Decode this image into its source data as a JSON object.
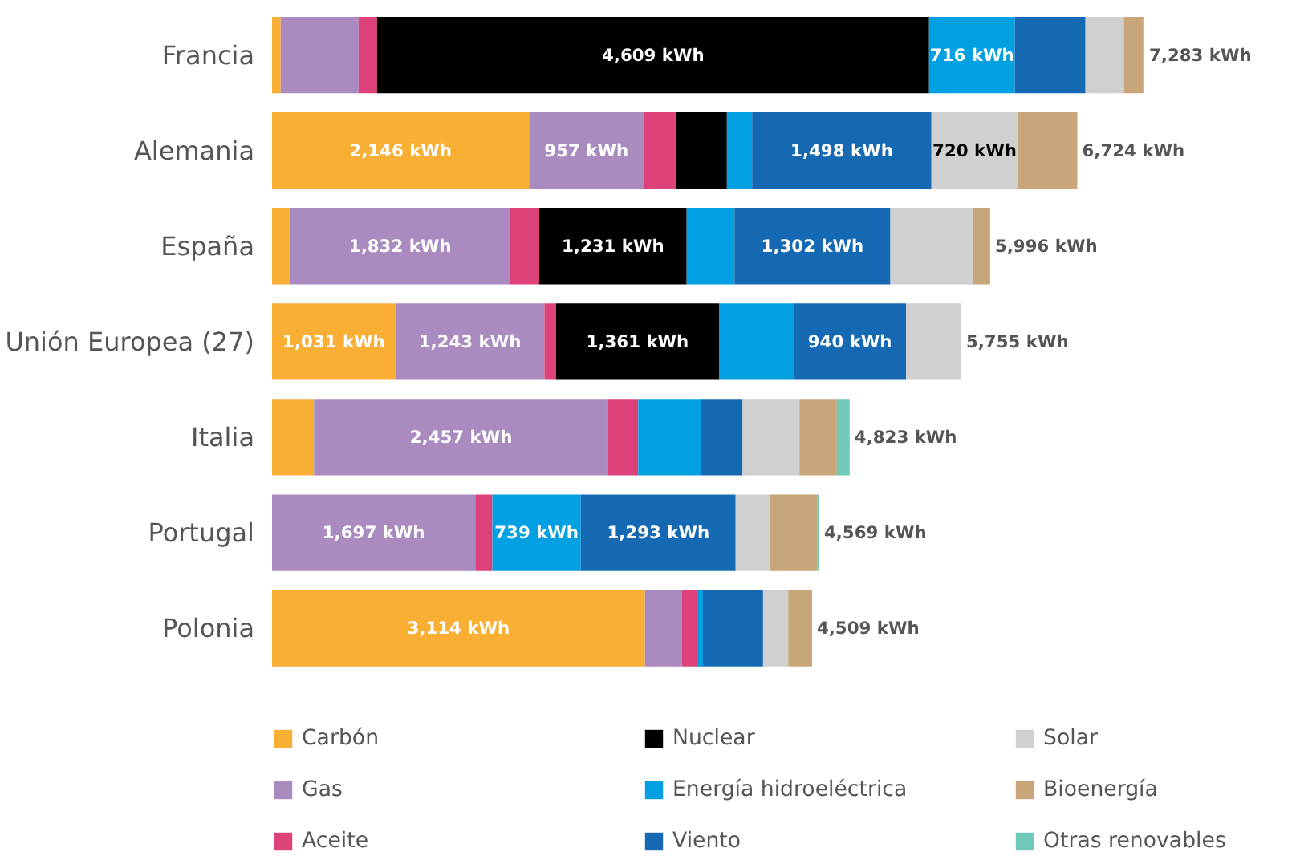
{
  "chart_data": {
    "type": "bar",
    "orientation": "horizontal",
    "stacked": true,
    "categories": [
      "Francia",
      "Alemania",
      "España",
      "Unión Europea (27)",
      "Italia",
      "Portugal",
      "Polonia"
    ],
    "series": [
      {
        "name": "Carbón",
        "color": "#f9ae34",
        "values": [
          72,
          2146,
          154,
          1031,
          350,
          null,
          3114
        ],
        "value_labels": [
          null,
          "2,146 kWh",
          null,
          "1,031 kWh",
          null,
          null,
          "3,114 kWh"
        ]
      },
      {
        "name": "Gas",
        "color": "#a98bbf",
        "values": [
          650,
          957,
          1832,
          1243,
          2457,
          1697,
          310
        ],
        "value_labels": [
          null,
          "957 kWh",
          "1,832 kWh",
          "1,243 kWh",
          "2,457 kWh",
          "1,697 kWh",
          null
        ]
      },
      {
        "name": "Aceite",
        "color": "#dd437a",
        "values": [
          155,
          270,
          245,
          97,
          250,
          142,
          123
        ]
      },
      {
        "name": "Nuclear",
        "color": "#000000",
        "values": [
          4609,
          425,
          1231,
          1361,
          null,
          null,
          null
        ],
        "value_labels": [
          "4,609 kWh",
          null,
          "1,231 kWh",
          "1,361 kWh",
          null,
          null,
          null
        ]
      },
      {
        "name": "Energía hidroeléctrica",
        "color": "#00a0e3",
        "values": [
          716,
          210,
          399,
          623,
          525,
          739,
          51
        ],
        "value_labels": [
          "716 kWh",
          null,
          null,
          null,
          null,
          "739 kWh",
          null
        ]
      },
      {
        "name": "Viento",
        "color": "#1569b2",
        "values": [
          590,
          1498,
          1302,
          940,
          347,
          1293,
          502
        ],
        "value_labels": [
          null,
          "1,498 kWh",
          "1,302 kWh",
          "940 kWh",
          null,
          "1,293 kWh",
          null
        ]
      },
      {
        "name": "Solar",
        "color": "#d0d0d0",
        "values": [
          320,
          720,
          690,
          460,
          475,
          290,
          210
        ],
        "value_labels": [
          null,
          "720 kWh",
          null,
          null,
          null,
          null,
          null
        ]
      },
      {
        "name": "Bioenergía",
        "color": "#c8a679",
        "values": [
          160,
          498,
          143,
          null,
          312,
          393,
          199
        ]
      },
      {
        "name": "Otras renovables",
        "color": "#6fc8b8",
        "values": [
          11,
          null,
          null,
          null,
          107,
          15,
          null
        ]
      }
    ],
    "totals": [
      "7,283 kWh",
      "6,724 kWh",
      "5,996 kWh",
      "5,755 kWh",
      "4,823 kWh",
      "4,569 kWh",
      "4,509 kWh"
    ],
    "tick_labels": "y",
    "grid": false,
    "legend": "bottom"
  }
}
